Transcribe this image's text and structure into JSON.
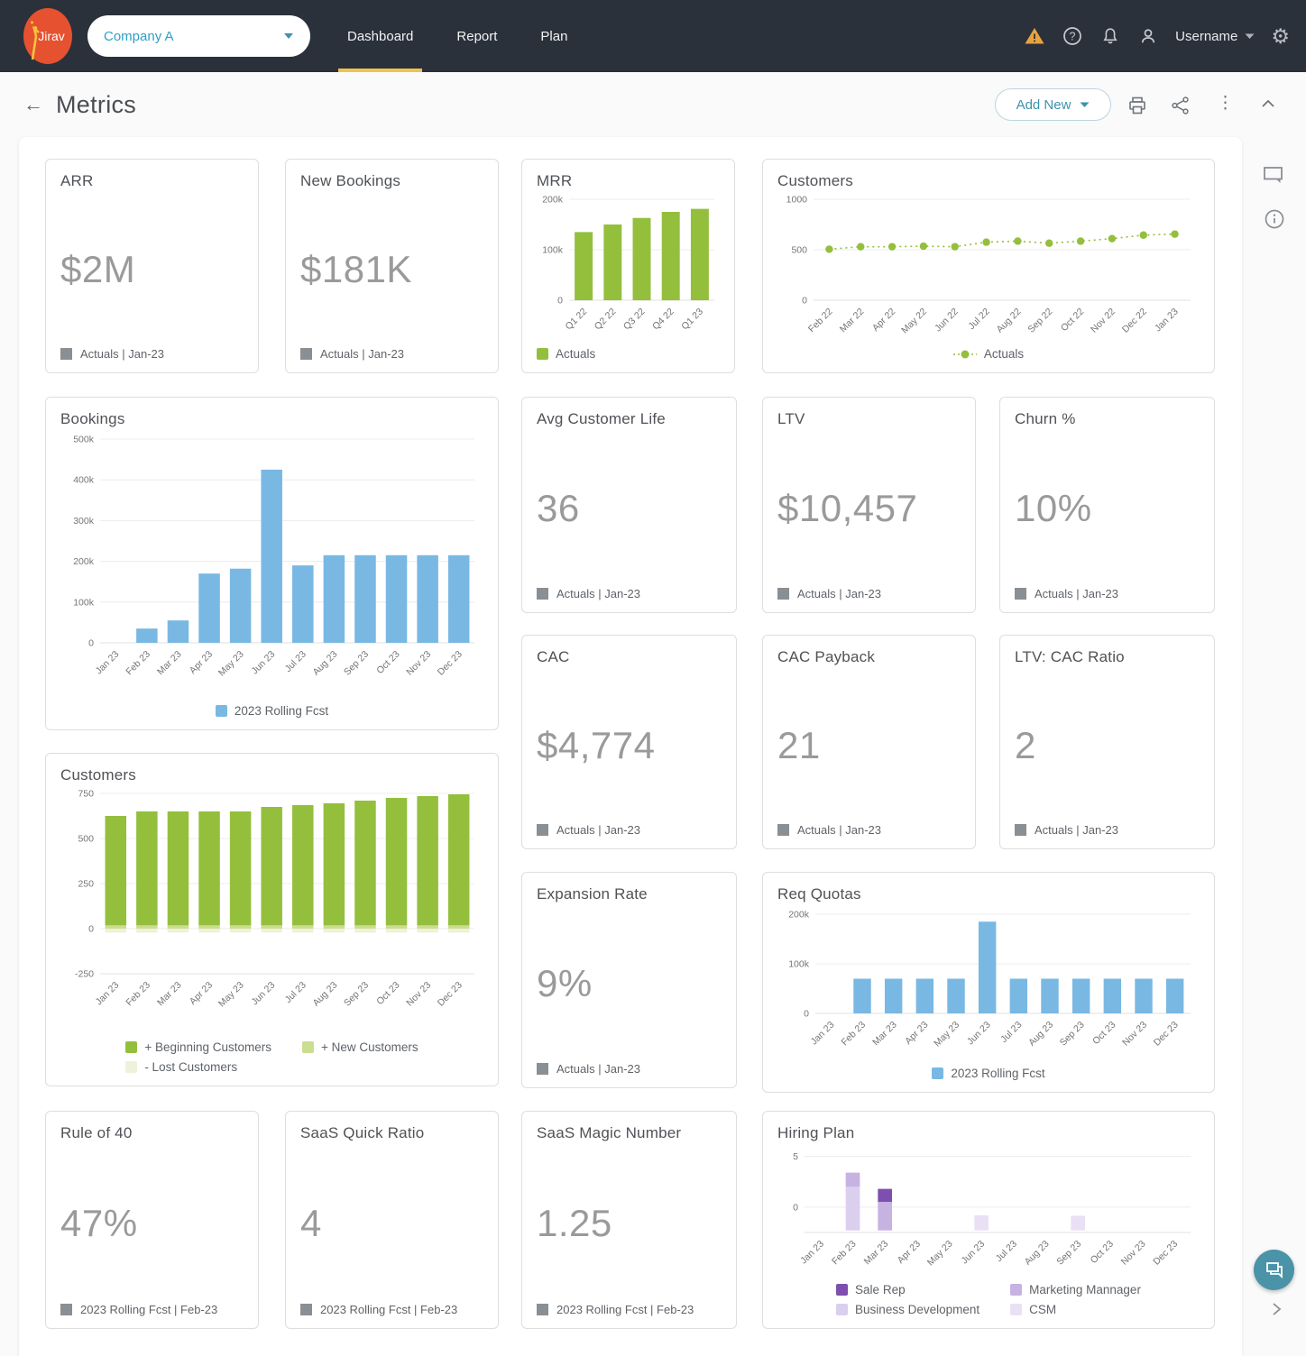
{
  "topbar": {
    "logo_text": "Jirav",
    "company_selector": "Company A",
    "tabs": [
      {
        "label": "Dashboard",
        "active": true
      },
      {
        "label": "Report",
        "active": false
      },
      {
        "label": "Plan",
        "active": false
      }
    ],
    "username": "Username"
  },
  "header": {
    "title": "Metrics",
    "add_new_label": "Add New"
  },
  "icons": {
    "back": "←",
    "gear": "⚙",
    "kebab": "⋮"
  },
  "colors": {
    "topbar_bg": "#2b313a",
    "accent_teal": "#3d93ad",
    "active_tab_underline": "#f0c24f",
    "green": "#94bf3d",
    "green_light": "#cbdd90",
    "green_pale": "#eef2da",
    "blue": "#79b8e3",
    "purple_dark": "#7e4fae",
    "purple_mid": "#c6b3e2",
    "purple_light": "#dbcfee",
    "purple_pale": "#e9e0f5",
    "kpi_value": "#9a9a9a",
    "logo_orange": "#e6512f"
  },
  "cards": {
    "arr": {
      "title": "ARR",
      "value": "$2M",
      "footer": "Actuals | Jan-23"
    },
    "new_bookings": {
      "title": "New Bookings",
      "value": "$181K",
      "footer": "Actuals | Jan-23"
    },
    "avg_customer_life": {
      "title": "Avg Customer Life",
      "value": "36",
      "footer": "Actuals | Jan-23"
    },
    "ltv": {
      "title": "LTV",
      "value": "$10,457",
      "footer": "Actuals | Jan-23"
    },
    "churn": {
      "title": "Churn %",
      "value": "10%",
      "footer": "Actuals | Jan-23"
    },
    "cac": {
      "title": "CAC",
      "value": "$4,774",
      "footer": "Actuals | Jan-23"
    },
    "cac_payback": {
      "title": "CAC Payback",
      "value": "21",
      "footer": "Actuals | Jan-23"
    },
    "ltv_cac_ratio": {
      "title": "LTV: CAC Ratio",
      "value": "2",
      "footer": "Actuals | Jan-23"
    },
    "expansion_rate": {
      "title": "Expansion Rate",
      "value": "9%",
      "footer": "Actuals | Jan-23"
    },
    "rule_of_40": {
      "title": "Rule of 40",
      "value": "47%",
      "footer": "2023 Rolling Fcst | Feb-23"
    },
    "saas_quick_ratio": {
      "title": "SaaS Quick Ratio",
      "value": "4",
      "footer": "2023 Rolling Fcst | Feb-23"
    },
    "saas_magic_number": {
      "title": "SaaS Magic Number",
      "value": "1.25",
      "footer": "2023 Rolling Fcst | Feb-23"
    }
  },
  "chart_data": {
    "mrr": {
      "type": "bar",
      "title": "MRR",
      "categories": [
        "Q1 22",
        "Q2 22",
        "Q3 22",
        "Q4 22",
        "Q1 23"
      ],
      "values": [
        135000,
        150000,
        163000,
        175000,
        181000
      ],
      "ymin": 0,
      "ymax": 200000,
      "yticks": [
        {
          "v": 0,
          "label": "0"
        },
        {
          "v": 100000,
          "label": "100k"
        },
        {
          "v": 200000,
          "label": "200k"
        }
      ],
      "series": [
        {
          "name": "Actuals",
          "color": "#94bf3d"
        }
      ],
      "legend": [
        {
          "label": "Actuals",
          "color": "#94bf3d"
        }
      ]
    },
    "customers_trend": {
      "type": "line",
      "title": "Customers",
      "categories": [
        "Feb 22",
        "Mar 22",
        "Apr 22",
        "May 22",
        "Jun 22",
        "Jul 22",
        "Aug 22",
        "Sep 22",
        "Oct 22",
        "Nov 22",
        "Dec 22",
        "Jan 23"
      ],
      "values": [
        505,
        530,
        530,
        535,
        530,
        575,
        585,
        565,
        585,
        610,
        645,
        655
      ],
      "ymin": 0,
      "ymax": 1000,
      "yticks": [
        {
          "v": 0,
          "label": "0"
        },
        {
          "v": 500,
          "label": "500"
        },
        {
          "v": 1000,
          "label": "1000"
        }
      ],
      "series": [
        {
          "name": "Actuals",
          "color": "#94bf3d"
        }
      ],
      "legend": [
        {
          "label": "Actuals",
          "color": "#94bf3d"
        }
      ]
    },
    "bookings": {
      "type": "bar",
      "title": "Bookings",
      "categories": [
        "Jan 23",
        "Feb 23",
        "Mar 23",
        "Apr 23",
        "May 23",
        "Jun 23",
        "Jul 23",
        "Aug 23",
        "Sep 23",
        "Oct 23",
        "Nov 23",
        "Dec 23"
      ],
      "values": [
        0,
        35000,
        55000,
        170000,
        182000,
        425000,
        190000,
        215000,
        215000,
        215000,
        215000,
        215000
      ],
      "ymin": 0,
      "ymax": 500000,
      "yticks": [
        {
          "v": 0,
          "label": "0"
        },
        {
          "v": 100000,
          "label": "100k"
        },
        {
          "v": 200000,
          "label": "200k"
        },
        {
          "v": 300000,
          "label": "300k"
        },
        {
          "v": 400000,
          "label": "400k"
        },
        {
          "v": 500000,
          "label": "500k"
        }
      ],
      "series": [
        {
          "name": "2023 Rolling Fcst",
          "color": "#79b8e3"
        }
      ],
      "legend": [
        {
          "label": "2023 Rolling Fcst",
          "color": "#79b8e3"
        }
      ]
    },
    "customers_stacked": {
      "type": "stacked",
      "title": "Customers",
      "categories": [
        "Jan 23",
        "Feb 23",
        "Mar 23",
        "Apr 23",
        "May 23",
        "Jun 23",
        "Jul 23",
        "Aug 23",
        "Sep 23",
        "Oct 23",
        "Nov 23",
        "Dec 23"
      ],
      "ymin": -250,
      "ymax": 750,
      "yticks": [
        {
          "v": 750,
          "label": "750"
        },
        {
          "v": 500,
          "label": "500"
        },
        {
          "v": 250,
          "label": "250"
        },
        {
          "v": 0,
          "label": "0"
        },
        {
          "v": -250,
          "label": "-250"
        }
      ],
      "series": [
        {
          "name": "+ Beginning Customers",
          "color": "#94bf3d",
          "ranges": [
            [
              18,
              625
            ],
            [
              18,
              650
            ],
            [
              18,
              650
            ],
            [
              18,
              650
            ],
            [
              18,
              650
            ],
            [
              18,
              675
            ],
            [
              18,
              685
            ],
            [
              18,
              695
            ],
            [
              18,
              710
            ],
            [
              18,
              725
            ],
            [
              18,
              735
            ],
            [
              18,
              745
            ]
          ]
        },
        {
          "name": "+ New Customers",
          "color": "#cbdd90",
          "ranges": [
            [
              0,
              18
            ],
            [
              0,
              18
            ],
            [
              0,
              18
            ],
            [
              0,
              18
            ],
            [
              0,
              18
            ],
            [
              0,
              18
            ],
            [
              0,
              18
            ],
            [
              0,
              18
            ],
            [
              0,
              18
            ],
            [
              0,
              18
            ],
            [
              0,
              18
            ],
            [
              0,
              18
            ]
          ]
        },
        {
          "name": "- Lost Customers",
          "color": "#eef2da",
          "ranges": [
            [
              -22,
              0
            ],
            [
              -22,
              0
            ],
            [
              -22,
              0
            ],
            [
              -22,
              0
            ],
            [
              -22,
              0
            ],
            [
              -22,
              0
            ],
            [
              -22,
              0
            ],
            [
              -22,
              0
            ],
            [
              -22,
              0
            ],
            [
              -22,
              0
            ],
            [
              -22,
              0
            ],
            [
              -22,
              0
            ]
          ]
        }
      ],
      "legend": [
        {
          "label": "+ Beginning Customers",
          "color": "#94bf3d"
        },
        {
          "label": "+ New Customers",
          "color": "#cbdd90"
        },
        {
          "label": "- Lost Customers",
          "color": "#eef2da"
        }
      ]
    },
    "req_quotas": {
      "type": "bar",
      "title": "Req Quotas",
      "categories": [
        "Jan 23",
        "Feb 23",
        "Mar 23",
        "Apr 23",
        "May 23",
        "Jun 23",
        "Jul 23",
        "Aug 23",
        "Sep 23",
        "Oct 23",
        "Nov 23",
        "Dec 23"
      ],
      "values": [
        0,
        70000,
        70000,
        70000,
        70000,
        185000,
        70000,
        70000,
        70000,
        70000,
        70000,
        70000
      ],
      "ymin": 0,
      "ymax": 200000,
      "yticks": [
        {
          "v": 0,
          "label": "0"
        },
        {
          "v": 100000,
          "label": "100k"
        },
        {
          "v": 200000,
          "label": "200k"
        }
      ],
      "series": [
        {
          "name": "2023 Rolling Fcst",
          "color": "#79b8e3"
        }
      ],
      "legend": [
        {
          "label": "2023 Rolling Fcst",
          "color": "#79b8e3"
        }
      ]
    },
    "hiring_plan": {
      "type": "stacked",
      "title": "Hiring Plan",
      "categories": [
        "Jan 23",
        "Feb 23",
        "Mar 23",
        "Apr 23",
        "May 23",
        "Jun 23",
        "Jul 23",
        "Aug 23",
        "Sep 23",
        "Oct 23",
        "Nov 23",
        "Dec 23"
      ],
      "ymin": -2.5,
      "ymax": 5.5,
      "yticks": [
        {
          "v": 5,
          "label": "5"
        },
        {
          "v": 0,
          "label": "0"
        }
      ],
      "series": [
        {
          "name": "Sale Rep",
          "color": "#7e4fae",
          "ranges": [
            null,
            null,
            [
              0.5,
              1.8
            ],
            null,
            null,
            null,
            null,
            null,
            null,
            null,
            null,
            null
          ]
        },
        {
          "name": "Marketing Mannager",
          "color": "#c6b3e2",
          "ranges": [
            null,
            [
              2.0,
              3.4
            ],
            [
              -2.3,
              0.5
            ],
            null,
            null,
            null,
            null,
            null,
            null,
            null,
            null,
            null
          ]
        },
        {
          "name": "Business Development",
          "color": "#dbcfee",
          "ranges": [
            null,
            [
              -2.3,
              2.0
            ],
            null,
            null,
            null,
            null,
            null,
            null,
            null,
            null,
            null,
            null
          ]
        },
        {
          "name": "CSM",
          "color": "#e9e0f5",
          "ranges": [
            null,
            null,
            null,
            null,
            null,
            [
              -2.3,
              -0.8
            ],
            null,
            null,
            [
              -2.3,
              -0.85
            ],
            null,
            null,
            null
          ]
        }
      ],
      "legend": [
        {
          "label": "Sale Rep",
          "color": "#7e4fae"
        },
        {
          "label": "Marketing Mannager",
          "color": "#c6b3e2"
        },
        {
          "label": "Business Development",
          "color": "#dbcfee"
        },
        {
          "label": "CSM",
          "color": "#e9e0f5"
        }
      ]
    }
  }
}
